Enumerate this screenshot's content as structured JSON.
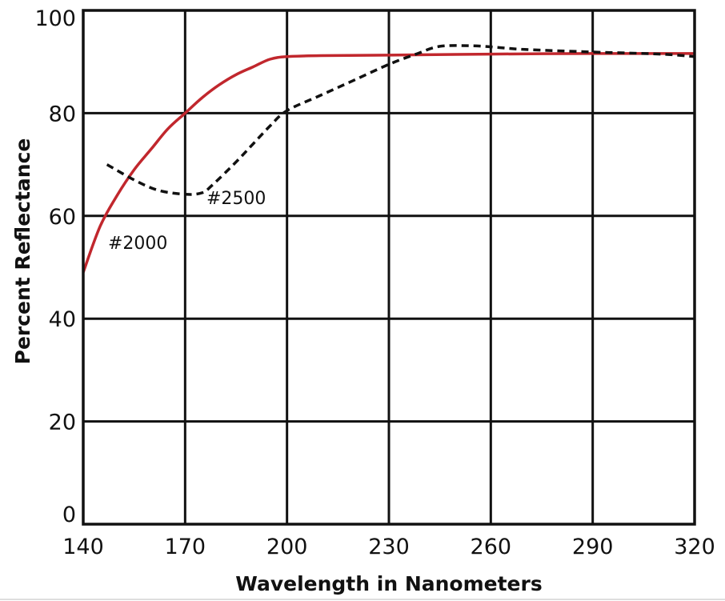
{
  "chart_data": {
    "type": "line",
    "xlabel": "Wavelength in Nanometers",
    "ylabel": "Percent Reflectance",
    "xlim": [
      140,
      320
    ],
    "ylim": [
      0,
      100
    ],
    "x_ticks": [
      "140",
      "170",
      "200",
      "230",
      "260",
      "290",
      "320"
    ],
    "y_ticks": [
      "0",
      "20",
      "40",
      "60",
      "80",
      "100"
    ],
    "grid": true,
    "series": [
      {
        "name": "#2000",
        "color": "#c1272d",
        "style": "solid",
        "x": [
          140,
          145,
          150,
          155,
          160,
          165,
          170,
          175,
          180,
          185,
          190,
          195,
          200,
          210,
          230,
          260,
          290,
          320
        ],
        "y": [
          49,
          58,
          64,
          69,
          73,
          77,
          80,
          83,
          85.5,
          87.5,
          89,
          90.5,
          91,
          91.2,
          91.3,
          91.5,
          91.6,
          91.6
        ]
      },
      {
        "name": "#2500",
        "color": "#111111",
        "style": "dashed",
        "x": [
          147,
          155,
          162,
          170,
          175,
          178,
          185,
          190,
          195,
          200,
          210,
          220,
          230,
          238,
          245,
          255,
          262,
          270,
          290,
          310,
          320
        ],
        "y": [
          70,
          67,
          65,
          64.2,
          64.5,
          66,
          70.5,
          74,
          77.5,
          80.5,
          83.5,
          86.5,
          89.5,
          91.5,
          93,
          93.1,
          92.8,
          92.4,
          91.9,
          91.5,
          91
        ]
      }
    ]
  }
}
